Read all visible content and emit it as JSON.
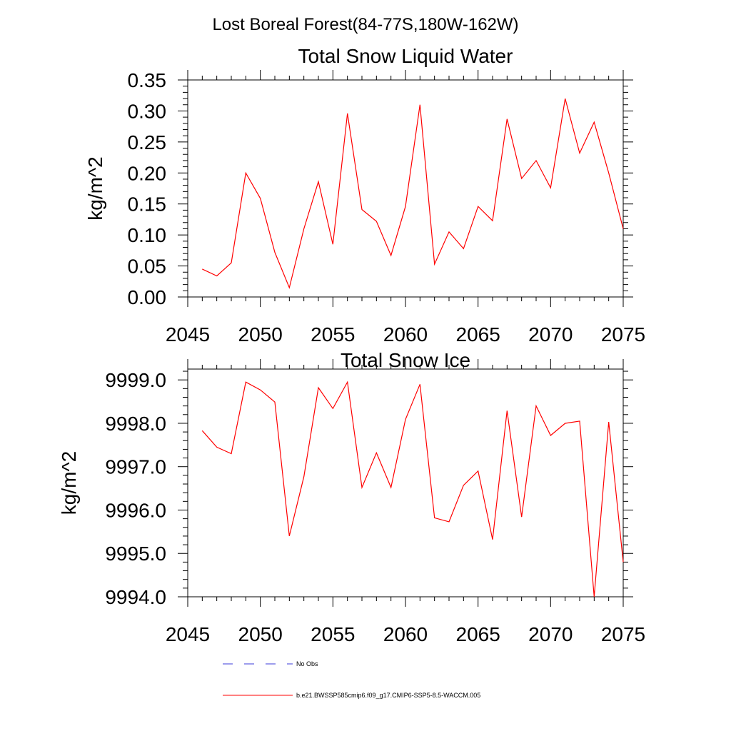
{
  "figure": {
    "title": "Lost Boreal Forest(84-77S,180W-162W)",
    "legend": [
      {
        "label": "No Obs",
        "color": "#3b3bd9",
        "style": "dashed"
      },
      {
        "label": "b.e21.BWSSP585cmip6.f09_g17.CMIP6-SSP5-8.5-WACCM.005",
        "color": "#ff0000",
        "style": "solid"
      }
    ]
  },
  "chart_data": [
    {
      "type": "line",
      "title": "Total Snow Liquid Water",
      "xlabel": "",
      "ylabel": "kg/m^2",
      "xlim": [
        2045,
        2075
      ],
      "ylim": [
        0.0,
        0.35
      ],
      "x_ticks": [
        "2045",
        "2050",
        "2055",
        "2060",
        "2065",
        "2070",
        "2075"
      ],
      "y_ticks": [
        "0.00",
        "0.05",
        "0.10",
        "0.15",
        "0.20",
        "0.25",
        "0.30",
        "0.35"
      ],
      "grid": false,
      "series": [
        {
          "name": "b.e21.BWSSP585cmip6.f09_g17.CMIP6-SSP5-8.5-WACCM.005",
          "color": "#ff0000",
          "x": [
            2046,
            2047,
            2048,
            2049,
            2050,
            2051,
            2052,
            2053,
            2054,
            2055,
            2056,
            2057,
            2058,
            2059,
            2060,
            2061,
            2062,
            2063,
            2064,
            2065,
            2066,
            2067,
            2068,
            2069,
            2070,
            2071,
            2072,
            2073,
            2074,
            2075
          ],
          "values": [
            0.045,
            0.034,
            0.055,
            0.2,
            0.159,
            0.072,
            0.015,
            0.11,
            0.186,
            0.085,
            0.296,
            0.141,
            0.122,
            0.067,
            0.146,
            0.31,
            0.053,
            0.105,
            0.078,
            0.146,
            0.123,
            0.287,
            0.191,
            0.22,
            0.176,
            0.32,
            0.232,
            0.282,
            0.2,
            0.11
          ]
        }
      ]
    },
    {
      "type": "line",
      "title": "Total Snow Ice",
      "xlabel": "",
      "ylabel": "kg/m^2",
      "xlim": [
        2045,
        2075
      ],
      "ylim": [
        9994.0,
        9999.25
      ],
      "x_ticks": [
        "2045",
        "2050",
        "2055",
        "2060",
        "2065",
        "2070",
        "2075"
      ],
      "y_ticks": [
        "9994.0",
        "9995.0",
        "9996.0",
        "9997.0",
        "9998.0",
        "9999.0"
      ],
      "grid": false,
      "series": [
        {
          "name": "b.e21.BWSSP585cmip6.f09_g17.CMIP6-SSP5-8.5-WACCM.005",
          "color": "#ff0000",
          "x": [
            2046,
            2047,
            2048,
            2049,
            2050,
            2051,
            2052,
            2053,
            2054,
            2055,
            2056,
            2057,
            2058,
            2059,
            2060,
            2061,
            2062,
            2063,
            2064,
            2065,
            2066,
            2067,
            2068,
            2069,
            2070,
            2071,
            2072,
            2073,
            2074,
            2075
          ],
          "values": [
            9997.83,
            9997.45,
            9997.3,
            9998.95,
            9998.77,
            9998.49,
            9995.4,
            9996.77,
            9998.82,
            9998.34,
            9998.95,
            9996.52,
            9997.32,
            9996.52,
            9998.09,
            9998.9,
            9995.82,
            9995.73,
            9996.57,
            9996.9,
            9995.32,
            9998.29,
            9995.84,
            9998.4,
            9997.72,
            9998.0,
            9998.05,
            9994.0,
            9998.03,
            9994.8
          ]
        }
      ]
    }
  ]
}
